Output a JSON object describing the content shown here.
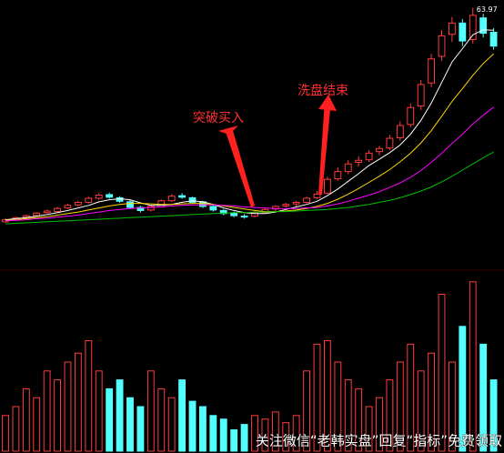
{
  "chart_data": {
    "type": "candlestick",
    "high_label_index": 45,
    "annotations": [
      "突破买入",
      "洗盘结束"
    ],
    "watermark": "关注微信“老韩实盘”回复“指标”免费领取",
    "up_color": "#ff3c3c",
    "down_color": "#54ffff",
    "ylim": [
      14,
      65.5
    ],
    "ohlc": [
      [
        22.2,
        22.9,
        22.0,
        22.6
      ],
      [
        22.6,
        23.2,
        22.4,
        23.0
      ],
      [
        23.1,
        23.6,
        22.8,
        23.4
      ],
      [
        23.4,
        24.1,
        23.2,
        23.9
      ],
      [
        24.0,
        24.6,
        23.8,
        24.3
      ],
      [
        24.2,
        25.1,
        24.0,
        24.8
      ],
      [
        24.9,
        25.7,
        24.7,
        25.4
      ],
      [
        25.5,
        26.3,
        25.2,
        26.0
      ],
      [
        26.0,
        27.1,
        25.8,
        26.8
      ],
      [
        26.8,
        27.8,
        26.5,
        27.4
      ],
      [
        27.5,
        27.9,
        26.7,
        27.0
      ],
      [
        26.9,
        27.2,
        25.9,
        26.2
      ],
      [
        26.1,
        26.4,
        24.7,
        25.0
      ],
      [
        25.0,
        25.3,
        24.0,
        24.4
      ],
      [
        24.5,
        25.5,
        24.2,
        25.2
      ],
      [
        25.1,
        26.6,
        25.0,
        26.3
      ],
      [
        26.3,
        27.6,
        26.1,
        27.2
      ],
      [
        27.3,
        27.8,
        26.7,
        27.0
      ],
      [
        26.9,
        27.1,
        25.7,
        26.0
      ],
      [
        26.1,
        26.3,
        24.9,
        25.2
      ],
      [
        25.2,
        25.6,
        24.2,
        24.5
      ],
      [
        24.4,
        24.7,
        23.5,
        23.8
      ],
      [
        23.9,
        24.2,
        23.1,
        23.4
      ],
      [
        23.3,
        23.7,
        22.8,
        23.2
      ],
      [
        23.3,
        24.3,
        23.1,
        24.0
      ],
      [
        24.0,
        24.9,
        23.8,
        24.6
      ],
      [
        24.7,
        25.4,
        24.3,
        25.2
      ],
      [
        25.3,
        25.9,
        25.0,
        25.6
      ],
      [
        25.7,
        26.3,
        25.2,
        26.0
      ],
      [
        26.0,
        27.1,
        25.8,
        26.8
      ],
      [
        26.9,
        28.2,
        26.6,
        27.6
      ],
      [
        27.8,
        31.0,
        27.6,
        30.5
      ],
      [
        30.6,
        32.8,
        30.2,
        32.0
      ],
      [
        32.0,
        34.2,
        31.5,
        33.5
      ],
      [
        33.8,
        35.0,
        33.0,
        34.2
      ],
      [
        34.3,
        36.2,
        33.9,
        35.6
      ],
      [
        35.9,
        37.0,
        35.2,
        36.5
      ],
      [
        36.6,
        39.2,
        36.2,
        38.5
      ],
      [
        38.6,
        41.8,
        38.0,
        41.0
      ],
      [
        41.2,
        45.3,
        40.6,
        44.5
      ],
      [
        44.8,
        49.9,
        44.0,
        49.0
      ],
      [
        49.3,
        55.0,
        48.5,
        54.0
      ],
      [
        54.5,
        59.6,
        53.6,
        58.5
      ],
      [
        58.8,
        62.2,
        57.3,
        61.0
      ],
      [
        61.0,
        61.8,
        56.5,
        57.5
      ],
      [
        57.8,
        63.97,
        57.0,
        62.5
      ],
      [
        62.0,
        62.8,
        58.2,
        59.0
      ],
      [
        59.2,
        60.0,
        55.8,
        56.5
      ]
    ],
    "ma_series": [
      {
        "color": "#ffffff",
        "values": [
          22.6,
          22.8,
          23.0,
          23.3,
          23.6,
          24.0,
          24.4,
          24.9,
          25.4,
          26.1,
          26.5,
          26.7,
          26.5,
          25.9,
          25.4,
          25.4,
          25.6,
          26.0,
          26.3,
          26.1,
          25.6,
          24.9,
          24.4,
          24.0,
          23.8,
          23.8,
          24.1,
          24.6,
          25.1,
          25.6,
          26.2,
          27.3,
          28.6,
          30.1,
          31.6,
          33.2,
          34.4,
          35.7,
          37.2,
          39.3,
          42.0,
          45.4,
          49.4,
          53.4,
          56.0,
          58.7,
          59.7,
          59.6
        ]
      },
      {
        "color": "#ffd700",
        "values": [
          22.5,
          22.6,
          22.8,
          23.0,
          23.2,
          23.5,
          23.8,
          24.1,
          24.5,
          24.9,
          25.3,
          25.6,
          25.8,
          25.8,
          25.7,
          25.6,
          25.6,
          25.7,
          25.8,
          25.8,
          25.6,
          25.3,
          25.0,
          24.7,
          24.4,
          24.2,
          24.2,
          24.3,
          24.5,
          24.8,
          25.2,
          25.8,
          26.6,
          27.6,
          28.7,
          29.9,
          31.1,
          32.4,
          33.9,
          35.6,
          37.6,
          40.0,
          42.8,
          45.7,
          48.2,
          50.8,
          53.1,
          55.0
        ]
      },
      {
        "color": "#ff00ff",
        "values": [
          22.4,
          22.5,
          22.6,
          22.8,
          22.9,
          23.1,
          23.3,
          23.5,
          23.8,
          24.1,
          24.4,
          24.6,
          24.8,
          24.9,
          25.0,
          25.1,
          25.3,
          25.4,
          25.5,
          25.5,
          25.5,
          25.4,
          25.3,
          25.1,
          25.0,
          24.9,
          24.8,
          24.8,
          24.8,
          24.9,
          25.0,
          25.3,
          25.7,
          26.2,
          26.8,
          27.4,
          28.1,
          28.9,
          29.8,
          30.9,
          32.2,
          33.8,
          35.6,
          37.5,
          39.3,
          41.3,
          43.0,
          44.6
        ]
      },
      {
        "color": "#00c000",
        "values": [
          21.8,
          21.9,
          22.0,
          22.1,
          22.2,
          22.3,
          22.4,
          22.5,
          22.6,
          22.7,
          22.8,
          22.9,
          23.0,
          23.1,
          23.2,
          23.3,
          23.4,
          23.5,
          23.6,
          23.7,
          23.8,
          23.9,
          24.0,
          24.0,
          24.1,
          24.1,
          24.2,
          24.2,
          24.3,
          24.4,
          24.5,
          24.6,
          24.8,
          25.0,
          25.3,
          25.6,
          26.0,
          26.4,
          26.9,
          27.5,
          28.2,
          29.0,
          30.0,
          31.1,
          32.3,
          33.5,
          34.7,
          35.8
        ]
      }
    ],
    "vlim": [
      0,
      100
    ],
    "volumes": [
      20,
      25,
      35,
      30,
      45,
      40,
      50,
      55,
      62,
      45,
      35,
      40,
      30,
      25,
      45,
      35,
      30,
      40,
      28,
      25,
      20,
      18,
      12,
      15,
      20,
      18,
      22,
      16,
      20,
      45,
      60,
      62,
      50,
      40,
      35,
      25,
      30,
      40,
      50,
      60,
      45,
      55,
      88,
      50,
      70,
      95,
      60,
      40
    ]
  }
}
